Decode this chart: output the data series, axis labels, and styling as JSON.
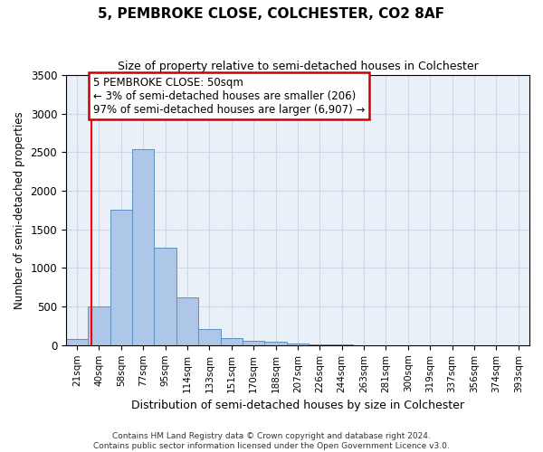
{
  "title": "5, PEMBROKE CLOSE, COLCHESTER, CO2 8AF",
  "subtitle": "Size of property relative to semi-detached houses in Colchester",
  "xlabel": "Distribution of semi-detached houses by size in Colchester",
  "ylabel": "Number of semi-detached properties",
  "bin_labels": [
    "21sqm",
    "40sqm",
    "58sqm",
    "77sqm",
    "95sqm",
    "114sqm",
    "133sqm",
    "151sqm",
    "170sqm",
    "188sqm",
    "207sqm",
    "226sqm",
    "244sqm",
    "263sqm",
    "281sqm",
    "300sqm",
    "319sqm",
    "337sqm",
    "356sqm",
    "374sqm",
    "393sqm"
  ],
  "bar_values": [
    80,
    500,
    1750,
    2540,
    1260,
    620,
    210,
    95,
    60,
    45,
    25,
    10,
    5,
    3,
    2,
    1,
    1,
    0,
    0,
    0,
    0
  ],
  "bar_color": "#aec6e8",
  "bar_edge_color": "#5a8fc0",
  "grid_color": "#d0d8e8",
  "background_color": "#eaf0f8",
  "red_line_x": 0.65,
  "annotation_text": "5 PEMBROKE CLOSE: 50sqm\n← 3% of semi-detached houses are smaller (206)\n97% of semi-detached houses are larger (6,907) →",
  "annotation_box_color": "#ffffff",
  "annotation_border_color": "#cc0000",
  "ylim": [
    0,
    3500
  ],
  "yticks": [
    0,
    500,
    1000,
    1500,
    2000,
    2500,
    3000,
    3500
  ],
  "footer_line1": "Contains HM Land Registry data © Crown copyright and database right 2024.",
  "footer_line2": "Contains public sector information licensed under the Open Government Licence v3.0."
}
